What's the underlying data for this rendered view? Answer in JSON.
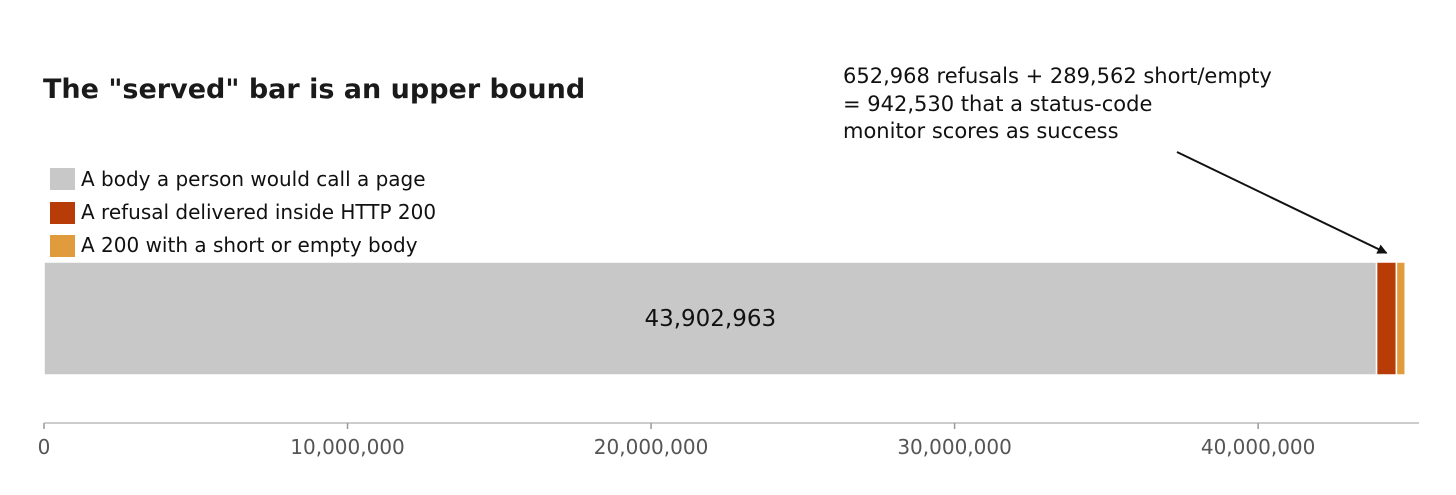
{
  "chart_data": {
    "type": "bar",
    "orientation": "horizontal",
    "stacked": true,
    "title": "The \"served\" bar is an upper bound",
    "xlabel": "",
    "ylabel": "",
    "xlim": [
      0,
      45300000
    ],
    "x_ticks": [
      0,
      10000000,
      20000000,
      30000000,
      40000000
    ],
    "x_tick_labels": [
      "0",
      "10,000,000",
      "20,000,000",
      "30,000,000",
      "40,000,000"
    ],
    "grid": false,
    "legend_position": "top-left",
    "series": [
      {
        "name": "A body a person would call a page",
        "value": 43902963,
        "color": "#c8c8c8",
        "data_label": "43,902,963"
      },
      {
        "name": "A refusal delivered inside HTTP 200",
        "value": 652968,
        "color": "#b83c08"
      },
      {
        "name": "A 200 with a short or empty body",
        "value": 289562,
        "color": "#e09b3d"
      }
    ],
    "annotation": {
      "lines": [
        "652,968 refusals + 289,562 short/empty",
        "= 942,530 that a status-code",
        "monitor scores as success"
      ],
      "points_to": "A refusal delivered inside HTTP 200"
    }
  }
}
